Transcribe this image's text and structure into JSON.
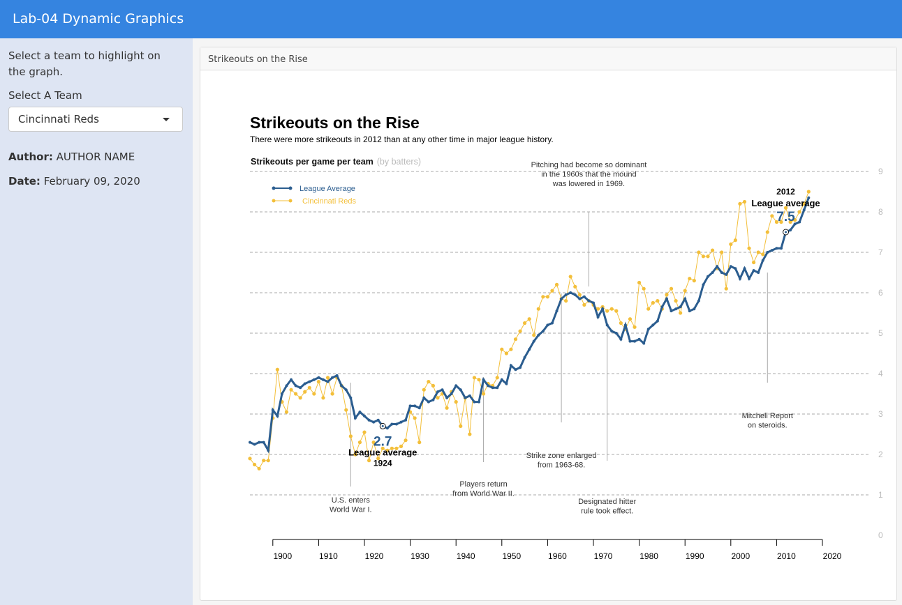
{
  "header": {
    "title": "Lab-04 Dynamic Graphics"
  },
  "sidebar": {
    "instruction": "Select a team to highlight on the graph.",
    "select_label": "Select A Team",
    "select_value": "Cincinnati Reds",
    "author": {
      "label": "Author:",
      "value": "AUTHOR NAME"
    },
    "date": {
      "label": "Date:",
      "value": "February 09, 2020"
    }
  },
  "panel": {
    "title": "Strikeouts on the Rise"
  },
  "chart_data": {
    "type": "line",
    "title": "Strikeouts on the Rise",
    "subtitle": "There were more strikeouts in 2012 than at any other time in major league history.",
    "y_label": "Strikeouts per game per team",
    "y_label_note": "(by batters)",
    "xlim": [
      1895,
      2020
    ],
    "xticks": [
      1900,
      1910,
      1920,
      1930,
      1940,
      1950,
      1960,
      1970,
      1980,
      1990,
      2000,
      2010,
      2020
    ],
    "ylim": [
      0,
      9
    ],
    "yticks": [
      0,
      1,
      2,
      3,
      4,
      5,
      6,
      7,
      8,
      9
    ],
    "grid": true,
    "x": [
      1895,
      1896,
      1897,
      1898,
      1899,
      1900,
      1901,
      1902,
      1903,
      1904,
      1905,
      1906,
      1907,
      1908,
      1909,
      1910,
      1911,
      1912,
      1913,
      1914,
      1915,
      1916,
      1917,
      1918,
      1919,
      1920,
      1921,
      1922,
      1923,
      1924,
      1925,
      1926,
      1927,
      1928,
      1929,
      1930,
      1931,
      1932,
      1933,
      1934,
      1935,
      1936,
      1937,
      1938,
      1939,
      1940,
      1941,
      1942,
      1943,
      1944,
      1945,
      1946,
      1947,
      1948,
      1949,
      1950,
      1951,
      1952,
      1953,
      1954,
      1955,
      1956,
      1957,
      1958,
      1959,
      1960,
      1961,
      1962,
      1963,
      1964,
      1965,
      1966,
      1967,
      1968,
      1969,
      1970,
      1971,
      1972,
      1973,
      1974,
      1975,
      1976,
      1977,
      1978,
      1979,
      1980,
      1981,
      1982,
      1983,
      1984,
      1985,
      1986,
      1987,
      1988,
      1989,
      1990,
      1991,
      1992,
      1993,
      1994,
      1995,
      1996,
      1997,
      1998,
      1999,
      2000,
      2001,
      2002,
      2003,
      2004,
      2005,
      2006,
      2007,
      2008,
      2009,
      2010,
      2011,
      2012,
      2013,
      2014,
      2015,
      2016,
      2017
    ],
    "series": [
      {
        "name": "League Average",
        "color": "#2b5d8f",
        "values": [
          2.3,
          2.25,
          2.3,
          2.3,
          2.1,
          3.1,
          2.95,
          3.5,
          3.7,
          3.85,
          3.7,
          3.65,
          3.75,
          3.8,
          3.85,
          3.9,
          3.85,
          3.8,
          3.9,
          3.95,
          3.7,
          3.6,
          3.4,
          2.9,
          3.05,
          2.95,
          2.85,
          2.8,
          2.85,
          2.7,
          2.65,
          2.75,
          2.75,
          2.8,
          2.85,
          3.2,
          3.2,
          3.15,
          3.4,
          3.3,
          3.35,
          3.55,
          3.6,
          3.4,
          3.5,
          3.7,
          3.6,
          3.4,
          3.45,
          3.3,
          3.3,
          3.85,
          3.7,
          3.65,
          3.65,
          3.85,
          3.75,
          4.2,
          4.1,
          4.15,
          4.4,
          4.6,
          4.8,
          4.95,
          5.05,
          5.2,
          5.25,
          5.55,
          5.85,
          5.95,
          6.0,
          5.95,
          5.85,
          5.9,
          5.8,
          5.75,
          5.4,
          5.6,
          5.2,
          5.05,
          5.0,
          4.85,
          5.2,
          4.8,
          4.8,
          4.85,
          4.75,
          5.1,
          5.2,
          5.3,
          5.65,
          5.85,
          5.55,
          5.6,
          5.65,
          5.85,
          5.55,
          5.6,
          5.8,
          6.2,
          6.4,
          6.5,
          6.65,
          6.5,
          6.45,
          6.65,
          6.6,
          6.35,
          6.6,
          6.35,
          6.55,
          6.5,
          6.8,
          7.0,
          7.05,
          7.1,
          7.1,
          7.5,
          7.55,
          7.7,
          7.75,
          8.05,
          8.35
        ]
      },
      {
        "name": "Cincinnati Reds",
        "color": "#f3bf3a",
        "values": [
          1.9,
          1.75,
          1.65,
          1.85,
          1.85,
          2.9,
          4.1,
          3.3,
          3.05,
          3.6,
          3.5,
          3.4,
          3.55,
          3.65,
          3.5,
          3.8,
          3.4,
          3.9,
          3.5,
          3.9,
          3.7,
          3.1,
          2.45,
          2.0,
          2.3,
          2.55,
          1.85,
          2.3,
          1.9,
          2.15,
          2.1,
          2.15,
          2.15,
          2.2,
          2.35,
          3.05,
          2.9,
          2.3,
          3.6,
          3.8,
          3.7,
          3.4,
          3.5,
          3.15,
          3.55,
          3.3,
          2.7,
          3.4,
          2.5,
          3.9,
          3.85,
          3.5,
          3.75,
          3.7,
          3.9,
          4.6,
          4.5,
          4.6,
          4.85,
          5.05,
          5.25,
          5.35,
          4.95,
          5.6,
          5.9,
          5.9,
          6.05,
          6.2,
          5.85,
          5.8,
          6.4,
          6.15,
          5.95,
          5.7,
          5.8,
          5.7,
          5.6,
          5.65,
          5.55,
          5.6,
          5.55,
          5.25,
          5.1,
          5.35,
          5.15,
          6.25,
          6.1,
          5.6,
          5.75,
          5.8,
          5.6,
          5.95,
          6.1,
          5.8,
          5.5,
          6.05,
          6.35,
          6.3,
          7.0,
          6.9,
          6.9,
          7.05,
          6.6,
          7.0,
          6.1,
          7.2,
          7.3,
          8.2,
          8.25,
          7.1,
          6.75,
          7.0,
          6.95,
          7.5,
          7.9,
          7.75,
          7.75,
          8.1,
          7.75,
          7.8,
          8.0,
          8.2,
          8.5
        ]
      }
    ],
    "highlights": [
      {
        "x": 1924,
        "value": 2.7,
        "caption": "League average"
      },
      {
        "x": 2012,
        "value": 7.5,
        "caption": "League average"
      }
    ],
    "annotations": [
      {
        "x": 1917,
        "lines": [
          "U.S. enters",
          "World War I."
        ]
      },
      {
        "x": 1946,
        "lines": [
          "Players return",
          "from World War II."
        ]
      },
      {
        "x": 1963,
        "lines": [
          "Strike zone enlarged",
          "from 1963-68."
        ]
      },
      {
        "x": 1969,
        "lines": [
          "Pitching had become so dominant",
          "in the 1960s that the mound",
          "was lowered in 1969."
        ]
      },
      {
        "x": 1973,
        "lines": [
          "Designated hitter",
          "rule took effect."
        ]
      },
      {
        "x": 2008,
        "lines": [
          "Mitchell Report",
          "on steroids."
        ]
      }
    ]
  }
}
